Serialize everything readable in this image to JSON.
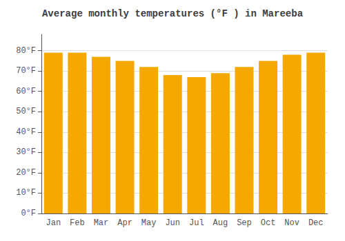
{
  "chart_data": {
    "type": "bar",
    "title": "Average monthly temperatures (°F ) in Mareeba",
    "categories": [
      "Jan",
      "Feb",
      "Mar",
      "Apr",
      "May",
      "Jun",
      "Jul",
      "Aug",
      "Sep",
      "Oct",
      "Nov",
      "Dec"
    ],
    "values": [
      79,
      79,
      77,
      75,
      72,
      68,
      67,
      69,
      72,
      75,
      78,
      79
    ],
    "color": "#F5A800",
    "ylim": [
      0,
      88
    ],
    "yticks": [
      {
        "value": 0,
        "label": "0°F"
      },
      {
        "value": 10,
        "label": "10°F"
      },
      {
        "value": 20,
        "label": "20°F"
      },
      {
        "value": 30,
        "label": "30°F"
      },
      {
        "value": 40,
        "label": "40°F"
      },
      {
        "value": 50,
        "label": "50°F"
      },
      {
        "value": 60,
        "label": "60°F"
      },
      {
        "value": 70,
        "label": "70°F"
      },
      {
        "value": 80,
        "label": "80°F"
      }
    ],
    "grid": true
  }
}
